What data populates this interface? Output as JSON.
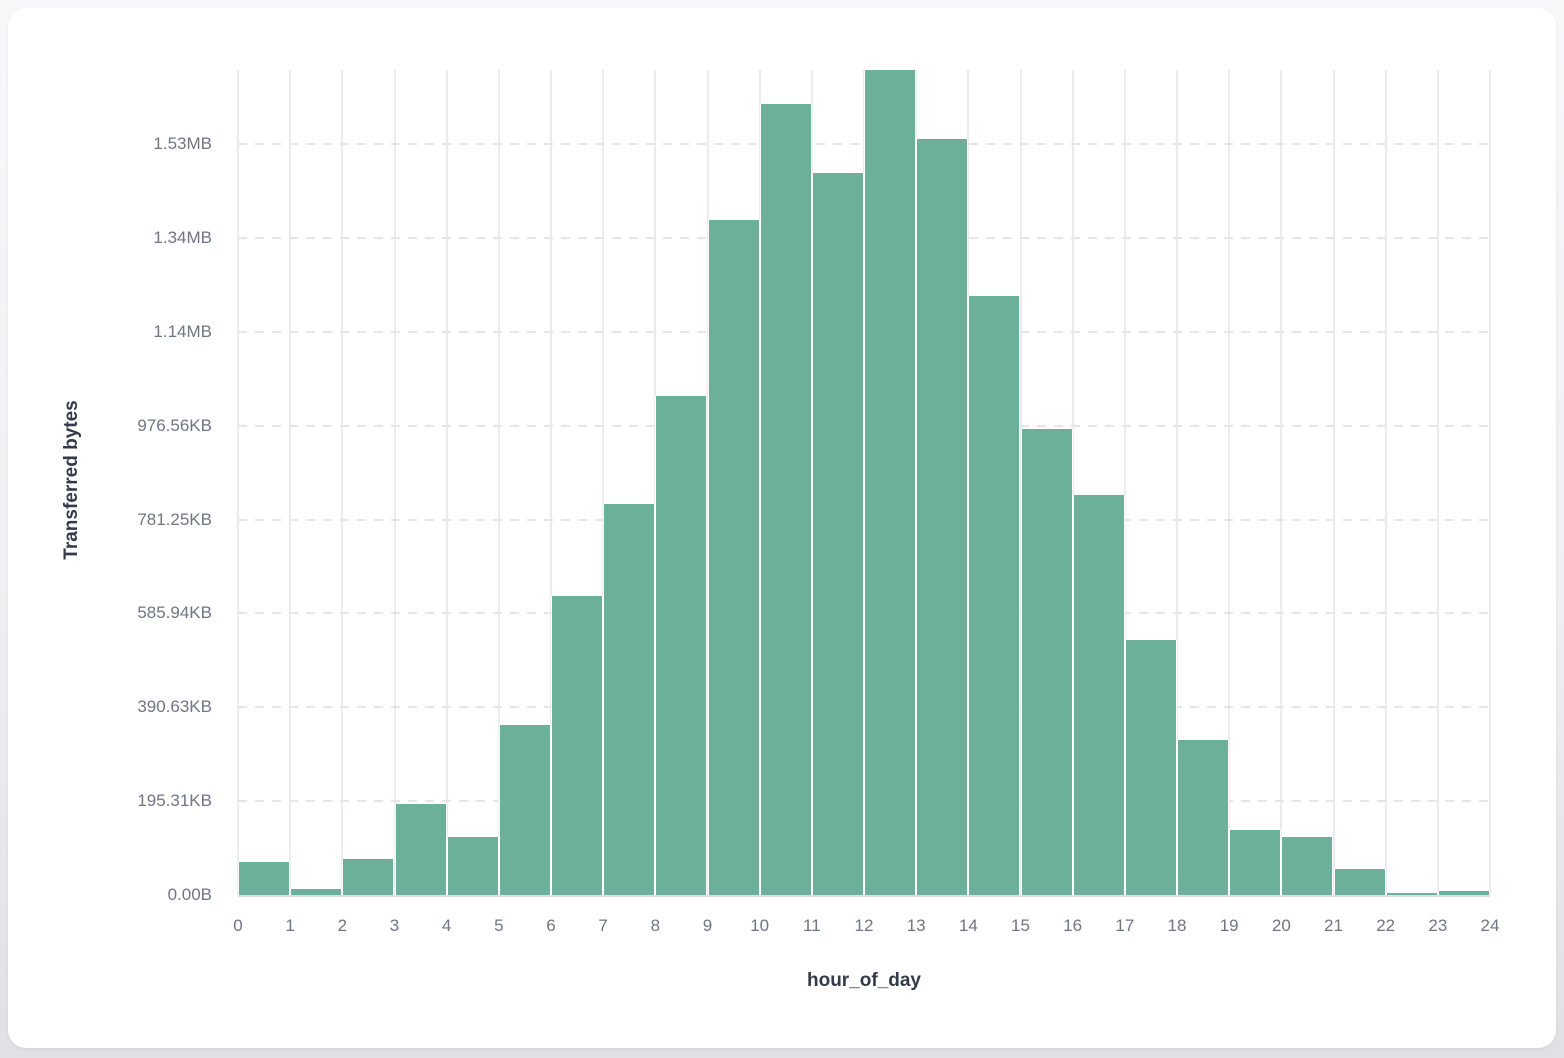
{
  "chart_data": {
    "type": "bar",
    "subtype": "histogram",
    "title": "",
    "xlabel": "hour_of_day",
    "ylabel": "Transferred bytes",
    "unit": "bytes",
    "categories": [
      0,
      1,
      2,
      3,
      4,
      5,
      6,
      7,
      8,
      9,
      10,
      11,
      12,
      13,
      14,
      15,
      16,
      17,
      18,
      19,
      20,
      21,
      22,
      23
    ],
    "values": [
      70000,
      13000,
      77000,
      195000,
      124000,
      363000,
      637000,
      833000,
      1064000,
      1438000,
      1685000,
      1538000,
      1758000,
      1611000,
      1277000,
      993000,
      852000,
      543000,
      331000,
      139000,
      124000,
      56000,
      4000,
      9000
    ],
    "x_ticks": [
      0,
      1,
      2,
      3,
      4,
      5,
      6,
      7,
      8,
      9,
      10,
      11,
      12,
      13,
      14,
      15,
      16,
      17,
      18,
      19,
      20,
      21,
      22,
      23,
      24
    ],
    "xlim": [
      0,
      24
    ],
    "ylim": [
      0,
      1758000
    ],
    "y_ticks": [
      {
        "value": 0,
        "label": "0.00B"
      },
      {
        "value": 200000,
        "label": "195.31KB"
      },
      {
        "value": 400000,
        "label": "390.63KB"
      },
      {
        "value": 600000,
        "label": "585.94KB"
      },
      {
        "value": 800000,
        "label": "781.25KB"
      },
      {
        "value": 1000000,
        "label": "976.56KB"
      },
      {
        "value": 1200000,
        "label": "1.14MB"
      },
      {
        "value": 1400000,
        "label": "1.34MB"
      },
      {
        "value": 1600000,
        "label": "1.53MB"
      }
    ],
    "grid": "both",
    "legend": "none",
    "colors": {
      "bar": "#6CB09A",
      "bar_stroke": "#FFFFFF",
      "grid_vertical": "#E9EBEF",
      "grid_horizontal": "#E3E6EB",
      "tick_text": "#6E7683",
      "axis_title_text": "#333A49",
      "card_background": "#FFFFFF",
      "page_background": "#EEF0F3"
    }
  }
}
